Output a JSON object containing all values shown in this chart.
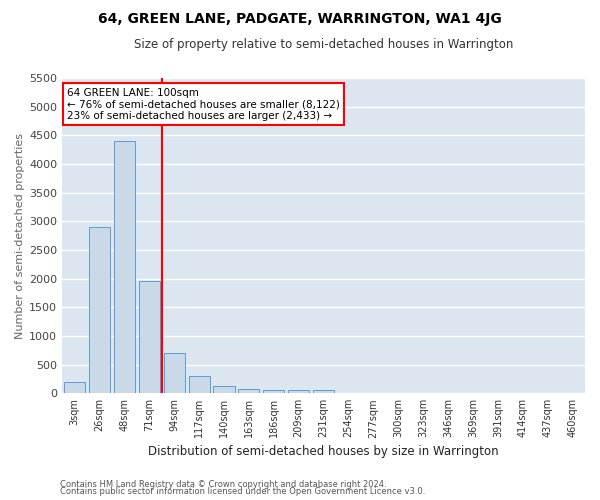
{
  "title": "64, GREEN LANE, PADGATE, WARRINGTON, WA1 4JG",
  "subtitle": "Size of property relative to semi-detached houses in Warrington",
  "xlabel": "Distribution of semi-detached houses by size in Warrington",
  "ylabel": "Number of semi-detached properties",
  "footnote1": "Contains HM Land Registry data © Crown copyright and database right 2024.",
  "footnote2": "Contains public sector information licensed under the Open Government Licence v3.0.",
  "annotation_title": "64 GREEN LANE: 100sqm",
  "annotation_line1": "← 76% of semi-detached houses are smaller (8,122)",
  "annotation_line2": "23% of semi-detached houses are larger (2,433) →",
  "bar_color": "#c9d9e8",
  "bar_edge_color": "#5b9bd5",
  "vline_color": "red",
  "annotation_box_edge": "red",
  "background_color": "#dce6f1",
  "grid_color": "white",
  "categories": [
    "3sqm",
    "26sqm",
    "48sqm",
    "71sqm",
    "94sqm",
    "117sqm",
    "140sqm",
    "163sqm",
    "186sqm",
    "209sqm",
    "231sqm",
    "254sqm",
    "277sqm",
    "300sqm",
    "323sqm",
    "346sqm",
    "369sqm",
    "391sqm",
    "414sqm",
    "437sqm",
    "460sqm"
  ],
  "values": [
    200,
    2900,
    4400,
    1950,
    700,
    300,
    120,
    75,
    55,
    55,
    50,
    0,
    0,
    0,
    0,
    0,
    0,
    0,
    0,
    0,
    0
  ],
  "ylim": [
    0,
    5500
  ],
  "yticks": [
    0,
    500,
    1000,
    1500,
    2000,
    2500,
    3000,
    3500,
    4000,
    4500,
    5000,
    5500
  ],
  "vline_x": 3.5,
  "figwidth": 6.0,
  "figheight": 5.0,
  "dpi": 100
}
